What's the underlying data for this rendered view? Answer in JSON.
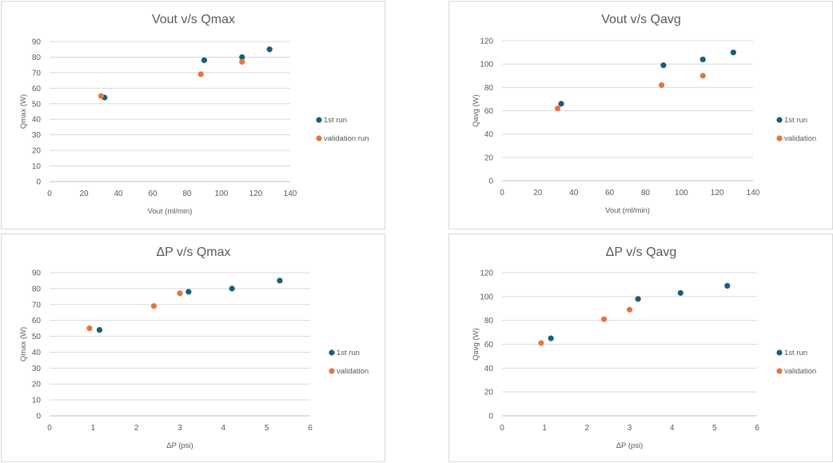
{
  "colors": {
    "run1": "#1b5e76",
    "validation": "#e8743b"
  },
  "chart_data": [
    {
      "type": "scatter",
      "title": "Vout v/s Qmax",
      "xlabel": "Vout (ml/min)",
      "ylabel": "Qmax (W)",
      "xlim": [
        0,
        140
      ],
      "ylim": [
        0,
        90
      ],
      "xticks": [
        "0",
        "20",
        "40",
        "60",
        "80",
        "100",
        "120",
        "140"
      ],
      "yticks": [
        "0",
        "10",
        "20",
        "30",
        "40",
        "50",
        "60",
        "70",
        "80",
        "90"
      ],
      "xtick_values": [
        0,
        20,
        40,
        60,
        80,
        100,
        120,
        140
      ],
      "ytick_values": [
        0,
        10,
        20,
        30,
        40,
        50,
        60,
        70,
        80,
        90
      ],
      "grid": true,
      "legend": "right",
      "series": [
        {
          "name": "1st run",
          "color_key": "run1",
          "points": [
            [
              32,
              54
            ],
            [
              90,
              78
            ],
            [
              112,
              80
            ],
            [
              128,
              85
            ]
          ]
        },
        {
          "name": "validation run",
          "color_key": "validation",
          "points": [
            [
              30,
              55
            ],
            [
              88,
              69
            ],
            [
              112,
              77
            ]
          ]
        }
      ]
    },
    {
      "type": "scatter",
      "title": "Vout v/s Qavg",
      "xlabel": "Vout (ml/min)",
      "ylabel": "Qavg (W)",
      "xlim": [
        0,
        140
      ],
      "ylim": [
        0,
        120
      ],
      "xticks": [
        "0",
        "20",
        "40",
        "60",
        "80",
        "100",
        "120",
        "140"
      ],
      "yticks": [
        "0",
        "20",
        "40",
        "60",
        "80",
        "100",
        "120"
      ],
      "xtick_values": [
        0,
        20,
        40,
        60,
        80,
        100,
        120,
        140
      ],
      "ytick_values": [
        0,
        20,
        40,
        60,
        80,
        100,
        120
      ],
      "grid": true,
      "legend": "right",
      "series": [
        {
          "name": "1st run",
          "color_key": "run1",
          "points": [
            [
              33,
              66
            ],
            [
              90,
              99
            ],
            [
              112,
              104
            ],
            [
              129,
              110
            ]
          ]
        },
        {
          "name": "validation",
          "color_key": "validation",
          "points": [
            [
              31,
              62
            ],
            [
              89,
              82
            ],
            [
              112,
              90
            ]
          ]
        }
      ]
    },
    {
      "type": "scatter",
      "title": "ΔP v/s Qmax",
      "xlabel": "ΔP (psi)",
      "ylabel": "Qmax (W)",
      "xlim": [
        0,
        6
      ],
      "ylim": [
        0,
        90
      ],
      "xticks": [
        "0",
        "1",
        "2",
        "3",
        "4",
        "5",
        "6"
      ],
      "yticks": [
        "0",
        "10",
        "20",
        "30",
        "40",
        "50",
        "60",
        "70",
        "80",
        "90"
      ],
      "xtick_values": [
        0,
        1,
        2,
        3,
        4,
        5,
        6
      ],
      "ytick_values": [
        0,
        10,
        20,
        30,
        40,
        50,
        60,
        70,
        80,
        90
      ],
      "grid": true,
      "legend": "right",
      "series": [
        {
          "name": "1st run",
          "color_key": "run1",
          "points": [
            [
              1.15,
              54
            ],
            [
              3.2,
              78
            ],
            [
              4.2,
              80
            ],
            [
              5.3,
              85
            ]
          ]
        },
        {
          "name": "validation",
          "color_key": "validation",
          "points": [
            [
              0.92,
              55
            ],
            [
              2.4,
              69
            ],
            [
              3.0,
              77
            ]
          ]
        }
      ]
    },
    {
      "type": "scatter",
      "title": "ΔP v/s Qavg",
      "xlabel": "ΔP (psi)",
      "ylabel": "Qavg (W)",
      "xlim": [
        0,
        6
      ],
      "ylim": [
        0,
        120
      ],
      "xticks": [
        "0",
        "1",
        "2",
        "3",
        "4",
        "5",
        "6"
      ],
      "yticks": [
        "0",
        "20",
        "40",
        "60",
        "80",
        "100",
        "120"
      ],
      "xtick_values": [
        0,
        1,
        2,
        3,
        4,
        5,
        6
      ],
      "ytick_values": [
        0,
        20,
        40,
        60,
        80,
        100,
        120
      ],
      "grid": true,
      "legend": "right",
      "series": [
        {
          "name": "1st run",
          "color_key": "run1",
          "points": [
            [
              1.15,
              65
            ],
            [
              3.2,
              98
            ],
            [
              4.2,
              103
            ],
            [
              5.3,
              109
            ]
          ]
        },
        {
          "name": "validation",
          "color_key": "validation",
          "points": [
            [
              0.92,
              61
            ],
            [
              2.4,
              81
            ],
            [
              3.0,
              89
            ]
          ]
        }
      ]
    }
  ]
}
